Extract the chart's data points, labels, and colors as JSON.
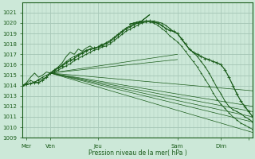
{
  "bg_color": "#cce8d8",
  "grid_color": "#a8c8b8",
  "line_color": "#1a5c1a",
  "ylim": [
    1009,
    1022
  ],
  "yticks": [
    1009,
    1010,
    1011,
    1012,
    1013,
    1014,
    1015,
    1016,
    1017,
    1018,
    1019,
    1020,
    1021
  ],
  "xlim": [
    0,
    116
  ],
  "xlabel": "Pression niveau de la mer( hPa )",
  "day_ticks": [
    2,
    14,
    38,
    78,
    100,
    114
  ],
  "day_labels": [
    "Mer",
    "Ven",
    "Jeu",
    "Sam",
    "Dim",
    ""
  ],
  "conv_x": 14,
  "conv_y": 1015.2,
  "thin_lines": [
    {
      "x": [
        14,
        116
      ],
      "y": [
        1015.2,
        1009.5
      ]
    },
    {
      "x": [
        14,
        116
      ],
      "y": [
        1015.2,
        1010.5
      ]
    },
    {
      "x": [
        14,
        116
      ],
      "y": [
        1015.2,
        1011.0
      ]
    },
    {
      "x": [
        14,
        116
      ],
      "y": [
        1015.2,
        1011.5
      ]
    },
    {
      "x": [
        14,
        116
      ],
      "y": [
        1015.2,
        1012.0
      ]
    },
    {
      "x": [
        14,
        116
      ],
      "y": [
        1015.2,
        1013.5
      ]
    },
    {
      "x": [
        14,
        78
      ],
      "y": [
        1015.2,
        1017.0
      ]
    },
    {
      "x": [
        14,
        78
      ],
      "y": [
        1015.2,
        1016.5
      ]
    }
  ],
  "main_line_x": [
    0,
    2,
    4,
    6,
    8,
    10,
    12,
    14,
    16,
    18,
    20,
    22,
    24,
    26,
    28,
    30,
    32,
    34,
    36,
    38,
    40,
    42,
    44,
    46,
    48,
    50,
    52,
    54,
    56,
    58,
    60,
    62,
    64,
    66,
    68,
    70,
    72,
    74,
    76,
    78,
    80,
    82,
    84,
    86,
    88,
    90,
    92,
    94,
    96,
    98,
    100,
    102,
    104,
    106,
    108,
    110,
    112,
    114,
    116
  ],
  "main_line_y": [
    1014.0,
    1014.1,
    1014.2,
    1014.3,
    1014.3,
    1014.5,
    1014.8,
    1015.2,
    1015.5,
    1015.7,
    1015.9,
    1016.2,
    1016.4,
    1016.6,
    1016.9,
    1017.1,
    1017.3,
    1017.5,
    1017.6,
    1017.7,
    1017.9,
    1018.1,
    1018.3,
    1018.6,
    1018.9,
    1019.2,
    1019.5,
    1019.7,
    1019.9,
    1020.0,
    1020.1,
    1020.2,
    1020.2,
    1020.1,
    1020.0,
    1019.8,
    1019.5,
    1019.3,
    1019.2,
    1019.0,
    1018.5,
    1018.0,
    1017.5,
    1017.2,
    1017.0,
    1016.8,
    1016.6,
    1016.5,
    1016.3,
    1016.2,
    1016.0,
    1015.5,
    1014.8,
    1014.0,
    1013.2,
    1012.5,
    1012.0,
    1011.5,
    1011.0
  ],
  "secondary_line1_x": [
    0,
    4,
    8,
    12,
    14,
    16,
    18,
    20,
    22,
    24,
    26,
    28,
    30,
    32,
    34,
    36,
    38,
    40,
    42,
    44,
    46,
    48,
    50,
    52,
    54,
    56,
    58,
    60,
    62,
    64,
    66,
    68,
    70,
    72,
    74,
    76,
    78,
    80,
    82,
    84,
    86,
    88,
    90,
    92,
    94,
    96,
    98,
    100,
    102,
    104,
    106,
    108,
    110,
    112,
    114,
    116
  ],
  "secondary_line1_y": [
    1014.0,
    1014.2,
    1014.5,
    1014.8,
    1015.2,
    1015.3,
    1015.5,
    1015.7,
    1015.9,
    1016.1,
    1016.4,
    1016.6,
    1016.8,
    1017.0,
    1017.2,
    1017.4,
    1017.5,
    1017.7,
    1017.8,
    1018.0,
    1018.3,
    1018.6,
    1018.9,
    1019.2,
    1019.4,
    1019.6,
    1019.8,
    1020.0,
    1020.1,
    1020.2,
    1020.2,
    1020.1,
    1020.0,
    1019.8,
    1019.5,
    1019.2,
    1019.0,
    1018.5,
    1018.0,
    1017.5,
    1017.2,
    1016.8,
    1016.3,
    1015.8,
    1015.2,
    1014.5,
    1013.8,
    1013.2,
    1012.5,
    1012.0,
    1011.7,
    1011.5,
    1011.3,
    1011.0,
    1010.8,
    1010.5
  ],
  "loop_x": [
    54,
    56,
    58,
    60,
    62,
    64,
    62,
    60,
    58,
    56,
    54
  ],
  "loop_y": [
    1019.9,
    1020.0,
    1020.1,
    1020.2,
    1020.5,
    1020.8,
    1020.5,
    1020.2,
    1020.1,
    1020.0,
    1019.9
  ],
  "wiggly_x": [
    0,
    2,
    4,
    6,
    8,
    10,
    12,
    14,
    16,
    18,
    20,
    22,
    24,
    26,
    28,
    30,
    32,
    34,
    36,
    38,
    40
  ],
  "wiggly_y": [
    1014.0,
    1014.3,
    1014.8,
    1015.2,
    1014.8,
    1015.0,
    1015.3,
    1015.2,
    1015.5,
    1015.8,
    1016.2,
    1016.8,
    1017.2,
    1017.0,
    1017.5,
    1017.3,
    1017.6,
    1017.8,
    1017.5,
    1017.7,
    1018.0
  ],
  "wiggly2_x": [
    0,
    2,
    4,
    6,
    8,
    10,
    12,
    14,
    16,
    18,
    20,
    22,
    24,
    26,
    28,
    30,
    32,
    34,
    36,
    38,
    40,
    42,
    44,
    46,
    48,
    50,
    52,
    54,
    56,
    58,
    60,
    62,
    64,
    66,
    68,
    70,
    72,
    74,
    76,
    78,
    80,
    82,
    84,
    86,
    88,
    90,
    92,
    94,
    96,
    98,
    100,
    102,
    104,
    106,
    108,
    110,
    112,
    114,
    116
  ],
  "wiggly2_y": [
    1014.0,
    1014.2,
    1014.5,
    1014.3,
    1014.6,
    1014.8,
    1015.0,
    1015.2,
    1015.4,
    1015.7,
    1016.0,
    1016.3,
    1016.6,
    1016.8,
    1017.0,
    1017.2,
    1017.4,
    1017.5,
    1017.6,
    1017.7,
    1017.8,
    1018.0,
    1018.2,
    1018.5,
    1018.8,
    1019.1,
    1019.4,
    1019.6,
    1019.8,
    1020.0,
    1020.1,
    1020.2,
    1020.1,
    1020.0,
    1019.8,
    1019.5,
    1019.2,
    1018.8,
    1018.5,
    1018.2,
    1017.8,
    1017.3,
    1016.8,
    1016.3,
    1015.8,
    1015.2,
    1014.6,
    1014.0,
    1013.3,
    1012.7,
    1012.2,
    1011.8,
    1011.4,
    1011.0,
    1010.7,
    1010.4,
    1010.2,
    1010.0,
    1009.8
  ]
}
